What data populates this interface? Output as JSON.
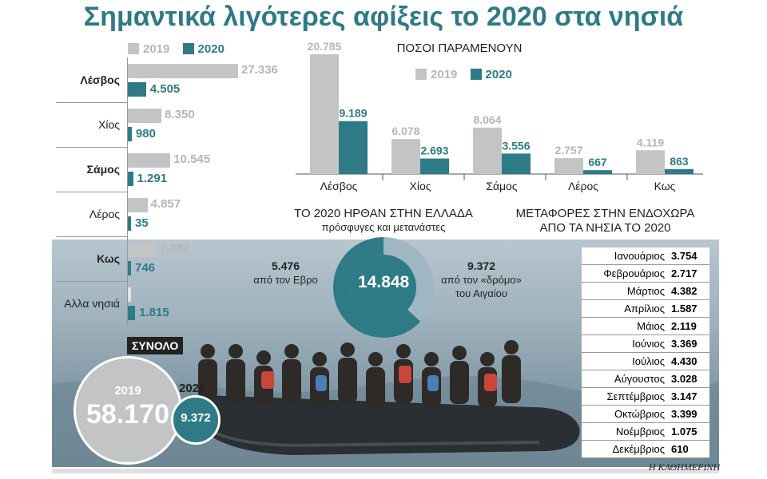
{
  "title": "Σημαντικά λιγότερες αφίξεις το 2020 στα νησιά",
  "legend": {
    "y2019": "2019",
    "y2020": "2020"
  },
  "colors": {
    "y2019": "#c3c4c6",
    "y2020": "#2e7a86"
  },
  "total": {
    "label": "ΣΥΝΟΛΟ",
    "y2019_label": "2019",
    "y2019_value": "58.170",
    "y2020_label": "2020",
    "y2020_value": "9.372"
  },
  "remain_title": "ΠΟΣΟΙ ΠΑΡΑΜΕΝΟΥΝ",
  "donut": {
    "title": "ΤΟ 2020 ΗΡΘΑΝ ΣΤΗΝ ΕΛΛΑΔΑ",
    "subtitle": "πρόσφυγες και μετανάστες",
    "center": "14.848",
    "left_value": "5.476",
    "left_text": "από τον Εβρο",
    "right_value": "9.372",
    "right_text1": "από τον «δρόμο»",
    "right_text2": "του Αιγαίου"
  },
  "transfers": {
    "title1": "ΜΕΤΑΦΟΡΕΣ ΣΤΗΝ ΕΝΔΟΧΩΡΑ",
    "title2": "ΑΠΟ ΤΑ ΝΗΣΙΑ ΤΟ 2020",
    "rows": [
      {
        "month": "Ιανουάριος",
        "value": "3.754"
      },
      {
        "month": "Φεβρουάριος",
        "value": "2.717"
      },
      {
        "month": "Μάρτιος",
        "value": "4.382"
      },
      {
        "month": "Απρίλιος",
        "value": "1.587"
      },
      {
        "month": "Μάιος",
        "value": "2.119"
      },
      {
        "month": "Ιούνιος",
        "value": "3.369"
      },
      {
        "month": "Ιούλιος",
        "value": "4.430"
      },
      {
        "month": "Αύγουστος",
        "value": "3.028"
      },
      {
        "month": "Σεπτέμβριος",
        "value": "3.147"
      },
      {
        "month": "Οκτώβριος",
        "value": "3.399"
      },
      {
        "month": "Νοέμβριος",
        "value": "1.075"
      },
      {
        "month": "Δεκέμβριος",
        "value": "610"
      }
    ]
  },
  "credit": "Η ΚΑΘΗΜΕΡΙΝΗ",
  "chart_data": [
    {
      "type": "bar",
      "orientation": "horizontal",
      "categories": [
        "Λέσβος",
        "Χίος",
        "Σάμος",
        "Λέρος",
        "Κως",
        "Αλλα νησιά"
      ],
      "bold": [
        true,
        false,
        true,
        false,
        true,
        false
      ],
      "series": [
        {
          "name": "2019",
          "values": [
            27336,
            8350,
            10545,
            4857,
            7082,
            null
          ],
          "labels": [
            "27.336",
            "8.350",
            "10.545",
            "4.857",
            "7.082",
            ""
          ]
        },
        {
          "name": "2020",
          "values": [
            4505,
            980,
            1291,
            35,
            746,
            1815
          ],
          "labels": [
            "4.505",
            "980",
            "1.291",
            "35",
            "746",
            "1.815"
          ]
        }
      ]
    },
    {
      "type": "bar",
      "title": "ΠΟΣΟΙ ΠΑΡΑΜΕΝΟΥΝ",
      "categories": [
        "Λέσβος",
        "Χίος",
        "Σάμος",
        "Λέρος",
        "Κως"
      ],
      "series": [
        {
          "name": "2019",
          "values": [
            20785,
            6078,
            8064,
            2757,
            4119
          ],
          "labels": [
            "20.785",
            "6.078",
            "8.064",
            "2.757",
            "4.119"
          ]
        },
        {
          "name": "2020",
          "values": [
            9189,
            2693,
            3556,
            667,
            863
          ],
          "labels": [
            "9.189",
            "2.693",
            "3.556",
            "667",
            "863"
          ]
        }
      ],
      "ylim": [
        0,
        20785
      ]
    },
    {
      "type": "pie",
      "donut": true,
      "categories": [
        "από τον Εβρο",
        "από τον «δρόμο» του Αιγαίου"
      ],
      "values": [
        5476,
        9372
      ],
      "colors": [
        "#9fb7c3",
        "#2e7a86"
      ]
    }
  ]
}
